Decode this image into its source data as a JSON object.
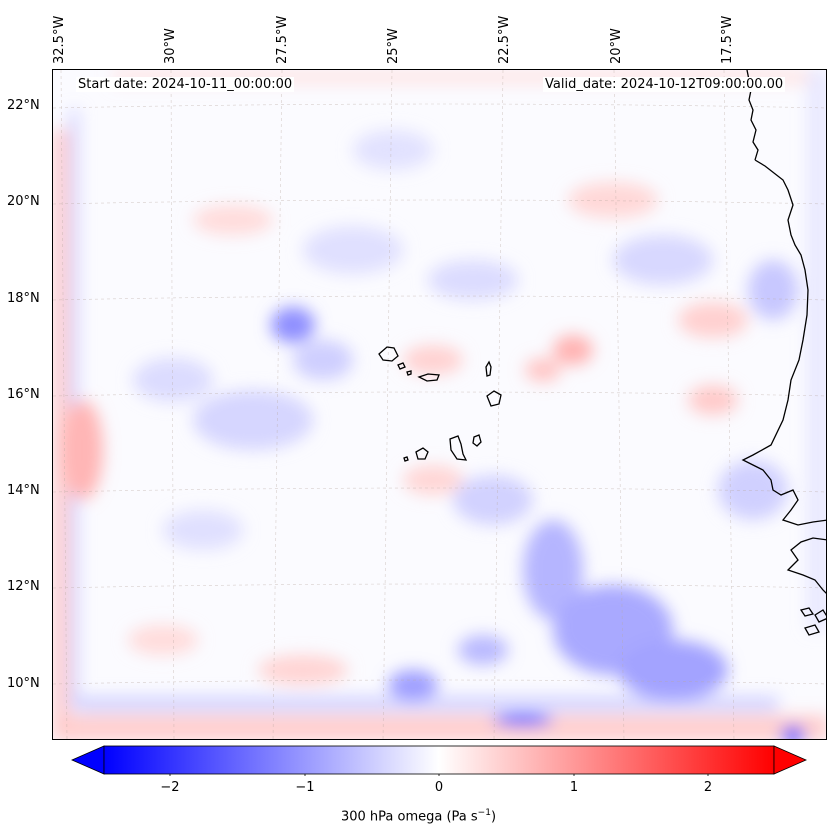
{
  "map": {
    "lon_labels": [
      "32.5°W",
      "30°W",
      "27.5°W",
      "25°W",
      "22.5°W",
      "20°W",
      "17.5°W"
    ],
    "lat_labels": [
      "22°N",
      "20°N",
      "18°N",
      "16°N",
      "14°N",
      "12°N",
      "10°N"
    ],
    "start_date": "Start date: 2024-10-11_00:00:00",
    "valid_date": "Valid_date: 2024-10-12T09:00:00.00",
    "field_colors": {
      "negative": "#0000ff",
      "neutral": "#ffffff",
      "positive": "#ff0000"
    }
  },
  "colorbar": {
    "ticks": [
      "−2",
      "−1",
      "0",
      "1",
      "2"
    ],
    "label_main": "300 hPa omega (Pa s",
    "label_sup": "−1",
    "label_end": ")",
    "range": [
      -2.6,
      2.6
    ],
    "extend": "both"
  }
}
